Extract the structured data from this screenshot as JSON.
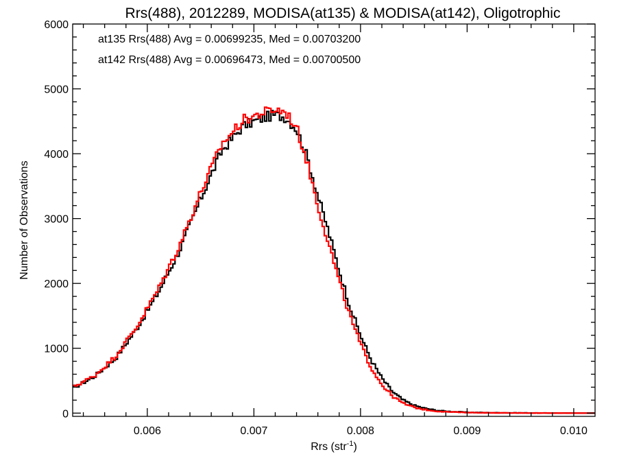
{
  "chart_data": {
    "type": "line",
    "title": "Rrs(488), 2012289, MODISA(at135) & MODISA(at142), Oligotrophic",
    "xlabel_main": "Rrs (str",
    "xlabel_sup": "-1",
    "xlabel_tail": ")",
    "ylabel": "Number of Observations",
    "xlim": [
      0.0053,
      0.0102
    ],
    "ylim": [
      -50,
      6000
    ],
    "xticks": [
      0.006,
      0.007,
      0.008,
      0.009,
      0.01
    ],
    "xtick_labels": [
      "0.006",
      "0.007",
      "0.008",
      "0.009",
      "0.010"
    ],
    "yticks": [
      0,
      1000,
      2000,
      3000,
      4000,
      5000,
      6000
    ],
    "ytick_labels": [
      "0",
      "1000",
      "2000",
      "3000",
      "4000",
      "5000",
      "6000"
    ],
    "legend_placement": "top-left",
    "grid": false,
    "series": [
      {
        "name": "at135 Rrs(488) Avg = 0.00699235, Med = 0.00703200",
        "color": "#000000",
        "points": [
          [
            0.0053,
            380
          ],
          [
            0.0055,
            560
          ],
          [
            0.0057,
            840
          ],
          [
            0.0059,
            1300
          ],
          [
            0.0061,
            1850
          ],
          [
            0.0063,
            2500
          ],
          [
            0.0065,
            3300
          ],
          [
            0.0067,
            4050
          ],
          [
            0.0069,
            4430
          ],
          [
            0.0071,
            4560
          ],
          [
            0.0072,
            4600
          ],
          [
            0.0073,
            4560
          ],
          [
            0.0074,
            4380
          ],
          [
            0.0075,
            3950
          ],
          [
            0.0076,
            3350
          ],
          [
            0.0077,
            2800
          ],
          [
            0.0078,
            2200
          ],
          [
            0.0079,
            1650
          ],
          [
            0.008,
            1200
          ],
          [
            0.0081,
            820
          ],
          [
            0.0082,
            540
          ],
          [
            0.0083,
            330
          ],
          [
            0.0084,
            200
          ],
          [
            0.0085,
            120
          ],
          [
            0.0086,
            75
          ],
          [
            0.0087,
            45
          ],
          [
            0.0088,
            28
          ],
          [
            0.009,
            12
          ],
          [
            0.0092,
            6
          ],
          [
            0.0095,
            3
          ],
          [
            0.0098,
            1
          ],
          [
            0.0102,
            0
          ]
        ]
      },
      {
        "name": "at142 Rrs(488) Avg = 0.00696473, Med = 0.00700500",
        "color": "#ff0000",
        "points": [
          [
            0.0053,
            400
          ],
          [
            0.0055,
            570
          ],
          [
            0.0057,
            870
          ],
          [
            0.0059,
            1330
          ],
          [
            0.0061,
            1900
          ],
          [
            0.0063,
            2580
          ],
          [
            0.0065,
            3400
          ],
          [
            0.0067,
            4150
          ],
          [
            0.0069,
            4520
          ],
          [
            0.0071,
            4640
          ],
          [
            0.0072,
            4680
          ],
          [
            0.0073,
            4640
          ],
          [
            0.0074,
            4400
          ],
          [
            0.0075,
            3870
          ],
          [
            0.0076,
            3200
          ],
          [
            0.0077,
            2620
          ],
          [
            0.0078,
            2030
          ],
          [
            0.0079,
            1500
          ],
          [
            0.008,
            1060
          ],
          [
            0.0081,
            700
          ],
          [
            0.0082,
            440
          ],
          [
            0.0083,
            260
          ],
          [
            0.0084,
            150
          ],
          [
            0.0085,
            90
          ],
          [
            0.0086,
            55
          ],
          [
            0.0087,
            32
          ],
          [
            0.0088,
            20
          ],
          [
            0.009,
            9
          ],
          [
            0.0092,
            4
          ],
          [
            0.0095,
            2
          ],
          [
            0.0098,
            1
          ],
          [
            0.0102,
            0
          ]
        ]
      }
    ]
  }
}
